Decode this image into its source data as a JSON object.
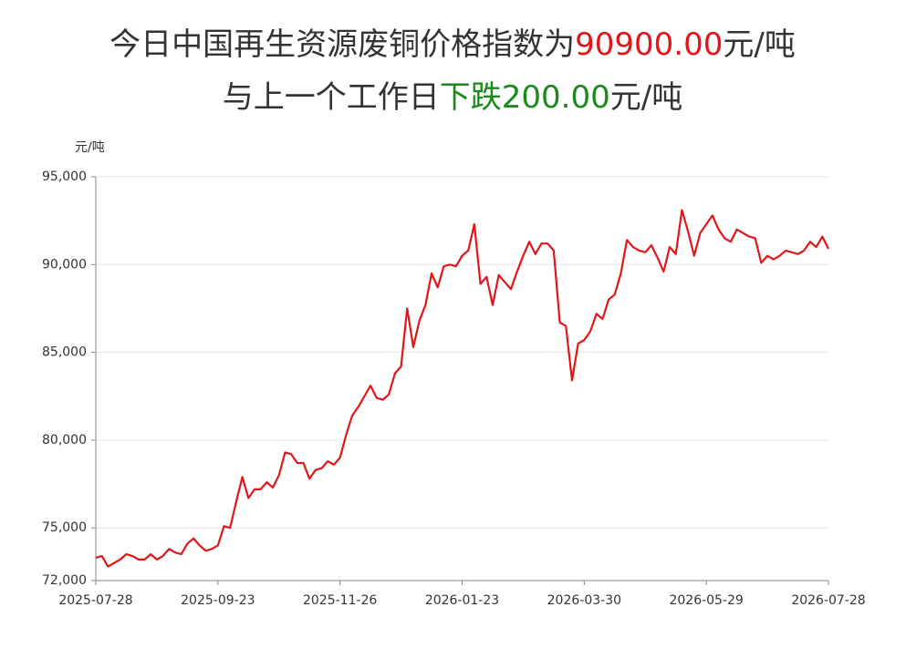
{
  "chart_data": {
    "type": "line",
    "title": [
      [
        {
          "text": "今日中国再生资源废铜价格指数为",
          "color": "#333333"
        },
        {
          "text": "90900.00",
          "color": "#e0161b"
        },
        {
          "text": "元/吨",
          "color": "#333333"
        }
      ],
      [
        {
          "text": "与上一个工作日",
          "color": "#333333"
        },
        {
          "text": "下跌200.00",
          "color": "#1a8a1a"
        },
        {
          "text": "元/吨",
          "color": "#333333"
        }
      ]
    ],
    "y_label": "元/吨",
    "categories": [
      "2025-07-28",
      null,
      null,
      null,
      null,
      null,
      null,
      null,
      null,
      null,
      null,
      null,
      null,
      null,
      null,
      null,
      null,
      null,
      null,
      null,
      "2025-09-23",
      null,
      null,
      null,
      null,
      null,
      null,
      null,
      null,
      null,
      null,
      null,
      null,
      null,
      null,
      null,
      null,
      null,
      null,
      null,
      "2025-11-26",
      null,
      null,
      null,
      null,
      null,
      null,
      null,
      null,
      null,
      null,
      null,
      null,
      null,
      null,
      null,
      null,
      null,
      null,
      null,
      "2026-01-23",
      null,
      null,
      null,
      null,
      null,
      null,
      null,
      null,
      null,
      null,
      null,
      null,
      null,
      null,
      null,
      null,
      null,
      null,
      null,
      "2026-03-30",
      null,
      null,
      null,
      null,
      null,
      null,
      null,
      null,
      null,
      null,
      null,
      null,
      null,
      null,
      null,
      null,
      null,
      null,
      null,
      "2026-05-29",
      null,
      null,
      null,
      null,
      null,
      null,
      null,
      null,
      null,
      null,
      null,
      null,
      null,
      null,
      null,
      null,
      null,
      null,
      null,
      "2026-07-28"
    ],
    "values": [
      73300,
      73400,
      72800,
      73000,
      73200,
      73500,
      73400,
      73200,
      73200,
      73500,
      73200,
      73400,
      73800,
      73600,
      73500,
      74100,
      74400,
      74000,
      73700,
      73800,
      74000,
      75100,
      75000,
      76500,
      77900,
      76700,
      77200,
      77200,
      77600,
      77300,
      78000,
      79300,
      79200,
      78700,
      78700,
      77800,
      78300,
      78400,
      78800,
      78600,
      79000,
      80300,
      81400,
      81900,
      82500,
      83100,
      82400,
      82300,
      82600,
      83800,
      84200,
      87500,
      85300,
      86800,
      87700,
      89500,
      88700,
      89900,
      90000,
      89900,
      90500,
      90800,
      92300,
      88900,
      89300,
      87700,
      89400,
      89000,
      88600,
      89600,
      90500,
      91300,
      90600,
      91200,
      91200,
      90800,
      86700,
      86500,
      83400,
      85500,
      85700,
      86200,
      87200,
      86900,
      88000,
      88300,
      89500,
      91400,
      91000,
      90800,
      90700,
      91100,
      90400,
      89600,
      91000,
      90600,
      93100,
      91900,
      90500,
      91800,
      92300,
      92800,
      92000,
      91500,
      91300,
      92000,
      91800,
      91600,
      91500,
      90100,
      90500,
      90300,
      90500,
      90800,
      90700,
      90600,
      90800,
      91300,
      91000,
      91600,
      90900
    ],
    "color": "#e0161b",
    "ylim": [
      72000,
      95000
    ],
    "yticks": [
      {
        "value": 72000,
        "label": "72,000"
      },
      {
        "value": 75000,
        "label": "75,000"
      },
      {
        "value": 80000,
        "label": "80,000"
      },
      {
        "value": 85000,
        "label": "85,000"
      },
      {
        "value": 90000,
        "label": "90,000"
      },
      {
        "value": 95000,
        "label": "95,000"
      }
    ],
    "grid": true
  }
}
